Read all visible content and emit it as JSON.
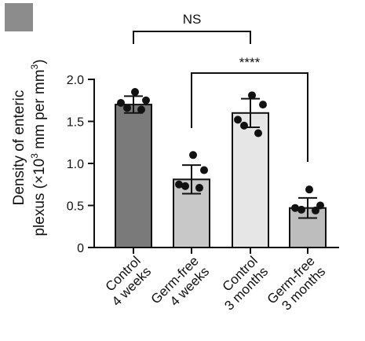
{
  "chart_data": {
    "type": "bar",
    "ylabel_lines": [
      "Density of enteric",
      "plexus (×10",
      "3",
      " mm per mm",
      "3",
      ")"
    ],
    "ylim": [
      0,
      2.0
    ],
    "yticks": [
      {
        "value": 0,
        "label": "0"
      },
      {
        "value": 0.5,
        "label": "0.5"
      },
      {
        "value": 1.0,
        "label": "1.0"
      },
      {
        "value": 1.5,
        "label": "1.5"
      },
      {
        "value": 2.0,
        "label": "2.0"
      }
    ],
    "categories": [
      {
        "line1": "Control",
        "line2": "4 weeks",
        "value": 1.7,
        "error": 0.1,
        "color": "#7a7a7a",
        "points": [
          1.85,
          1.75,
          1.72,
          1.66,
          1.64
        ]
      },
      {
        "line1": "Germ-free",
        "line2": "4 weeks",
        "value": 0.81,
        "error": 0.17,
        "color": "#c8c8c8",
        "points": [
          1.1,
          0.92,
          0.75,
          0.73,
          0.71
        ]
      },
      {
        "line1": "Control",
        "line2": "3 months",
        "value": 1.6,
        "error": 0.17,
        "color": "#e6e6e6",
        "points": [
          1.81,
          1.7,
          1.52,
          1.45,
          1.36
        ]
      },
      {
        "line1": "Germ-free",
        "line2": "3 months",
        "value": 0.47,
        "error": 0.12,
        "color": "#bdbdbd",
        "points": [
          0.69,
          0.5,
          0.47,
          0.45,
          0.44
        ]
      }
    ],
    "comparisons": [
      {
        "label": "NS",
        "from": 0,
        "to": 2
      },
      {
        "label": "****",
        "from": 1,
        "to": 3
      }
    ]
  }
}
